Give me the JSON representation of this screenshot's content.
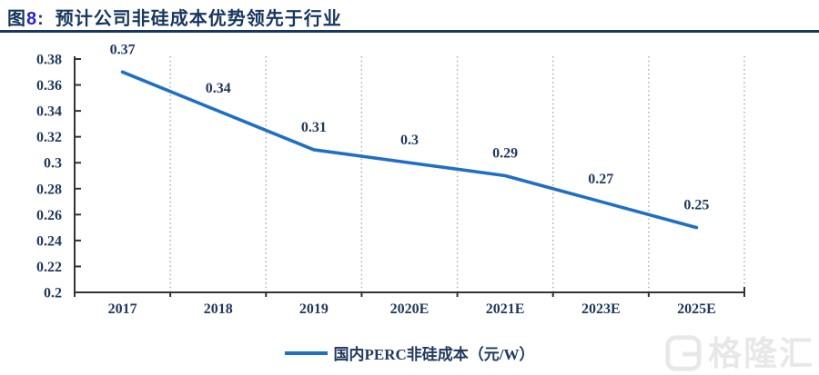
{
  "header": {
    "figure_prefix": "图",
    "figure_number": "8",
    "separator": ":",
    "title": "预计公司非硅成本优势领先于行业"
  },
  "chart_data": {
    "type": "line",
    "title": "",
    "categories": [
      "2017",
      "2018",
      "2019",
      "2020E",
      "2021E",
      "2023E",
      "2025E"
    ],
    "series": [
      {
        "name": "国内PERC非硅成本（元/W）",
        "values": [
          0.37,
          0.34,
          0.31,
          0.3,
          0.29,
          0.27,
          0.25
        ],
        "point_labels": [
          "0.37",
          "0.34",
          "0.31",
          "0.3",
          "0.29",
          "0.27",
          "0.25"
        ]
      }
    ],
    "xlabel": "",
    "ylabel": "",
    "ylim": [
      0.2,
      0.38
    ],
    "y_tick_step": 0.02,
    "y_tick_labels": [
      "0.38",
      "0.36",
      "0.34",
      "0.32",
      "0.3",
      "0.28",
      "0.26",
      "0.24",
      "0.22",
      "0.2"
    ],
    "grid": "vertical-dotted-gridlines-only",
    "legend_position": "bottom-center",
    "markers": "none",
    "colors": {
      "line": "#1F6FC4",
      "grid": "#A8A8A8",
      "axis": "#333333",
      "chart_text": "#21395C",
      "title": "#17375E",
      "figure_number": "#2424CC"
    }
  },
  "watermark": {
    "text": "格隆汇"
  }
}
